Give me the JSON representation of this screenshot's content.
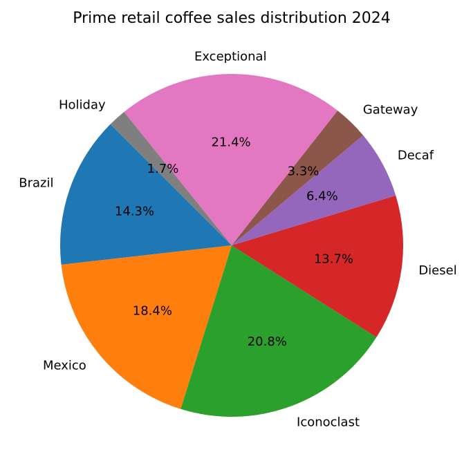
{
  "chart_data": {
    "type": "pie",
    "title": "Prime retail coffee sales distribution 2024",
    "start_angle_deg": 135,
    "direction": "counterclockwise",
    "slices": [
      {
        "label": "Brazil",
        "value": 14.3,
        "pct_label": "14.3%",
        "color": "#1f77b4"
      },
      {
        "label": "Mexico",
        "value": 18.4,
        "pct_label": "18.4%",
        "color": "#ff7f0e"
      },
      {
        "label": "Iconoclast",
        "value": 20.8,
        "pct_label": "20.8%",
        "color": "#2ca02c"
      },
      {
        "label": "Diesel",
        "value": 13.7,
        "pct_label": "13.7%",
        "color": "#d62728"
      },
      {
        "label": "Decaf",
        "value": 6.4,
        "pct_label": "6.4%",
        "color": "#9467bd"
      },
      {
        "label": "Gateway",
        "value": 3.3,
        "pct_label": "3.3%",
        "color": "#8c564b"
      },
      {
        "label": "Exceptional",
        "value": 21.4,
        "pct_label": "21.4%",
        "color": "#e377c2"
      },
      {
        "label": "Holiday",
        "value": 1.7,
        "pct_label": "1.7%",
        "color": "#7f7f7f"
      }
    ]
  }
}
